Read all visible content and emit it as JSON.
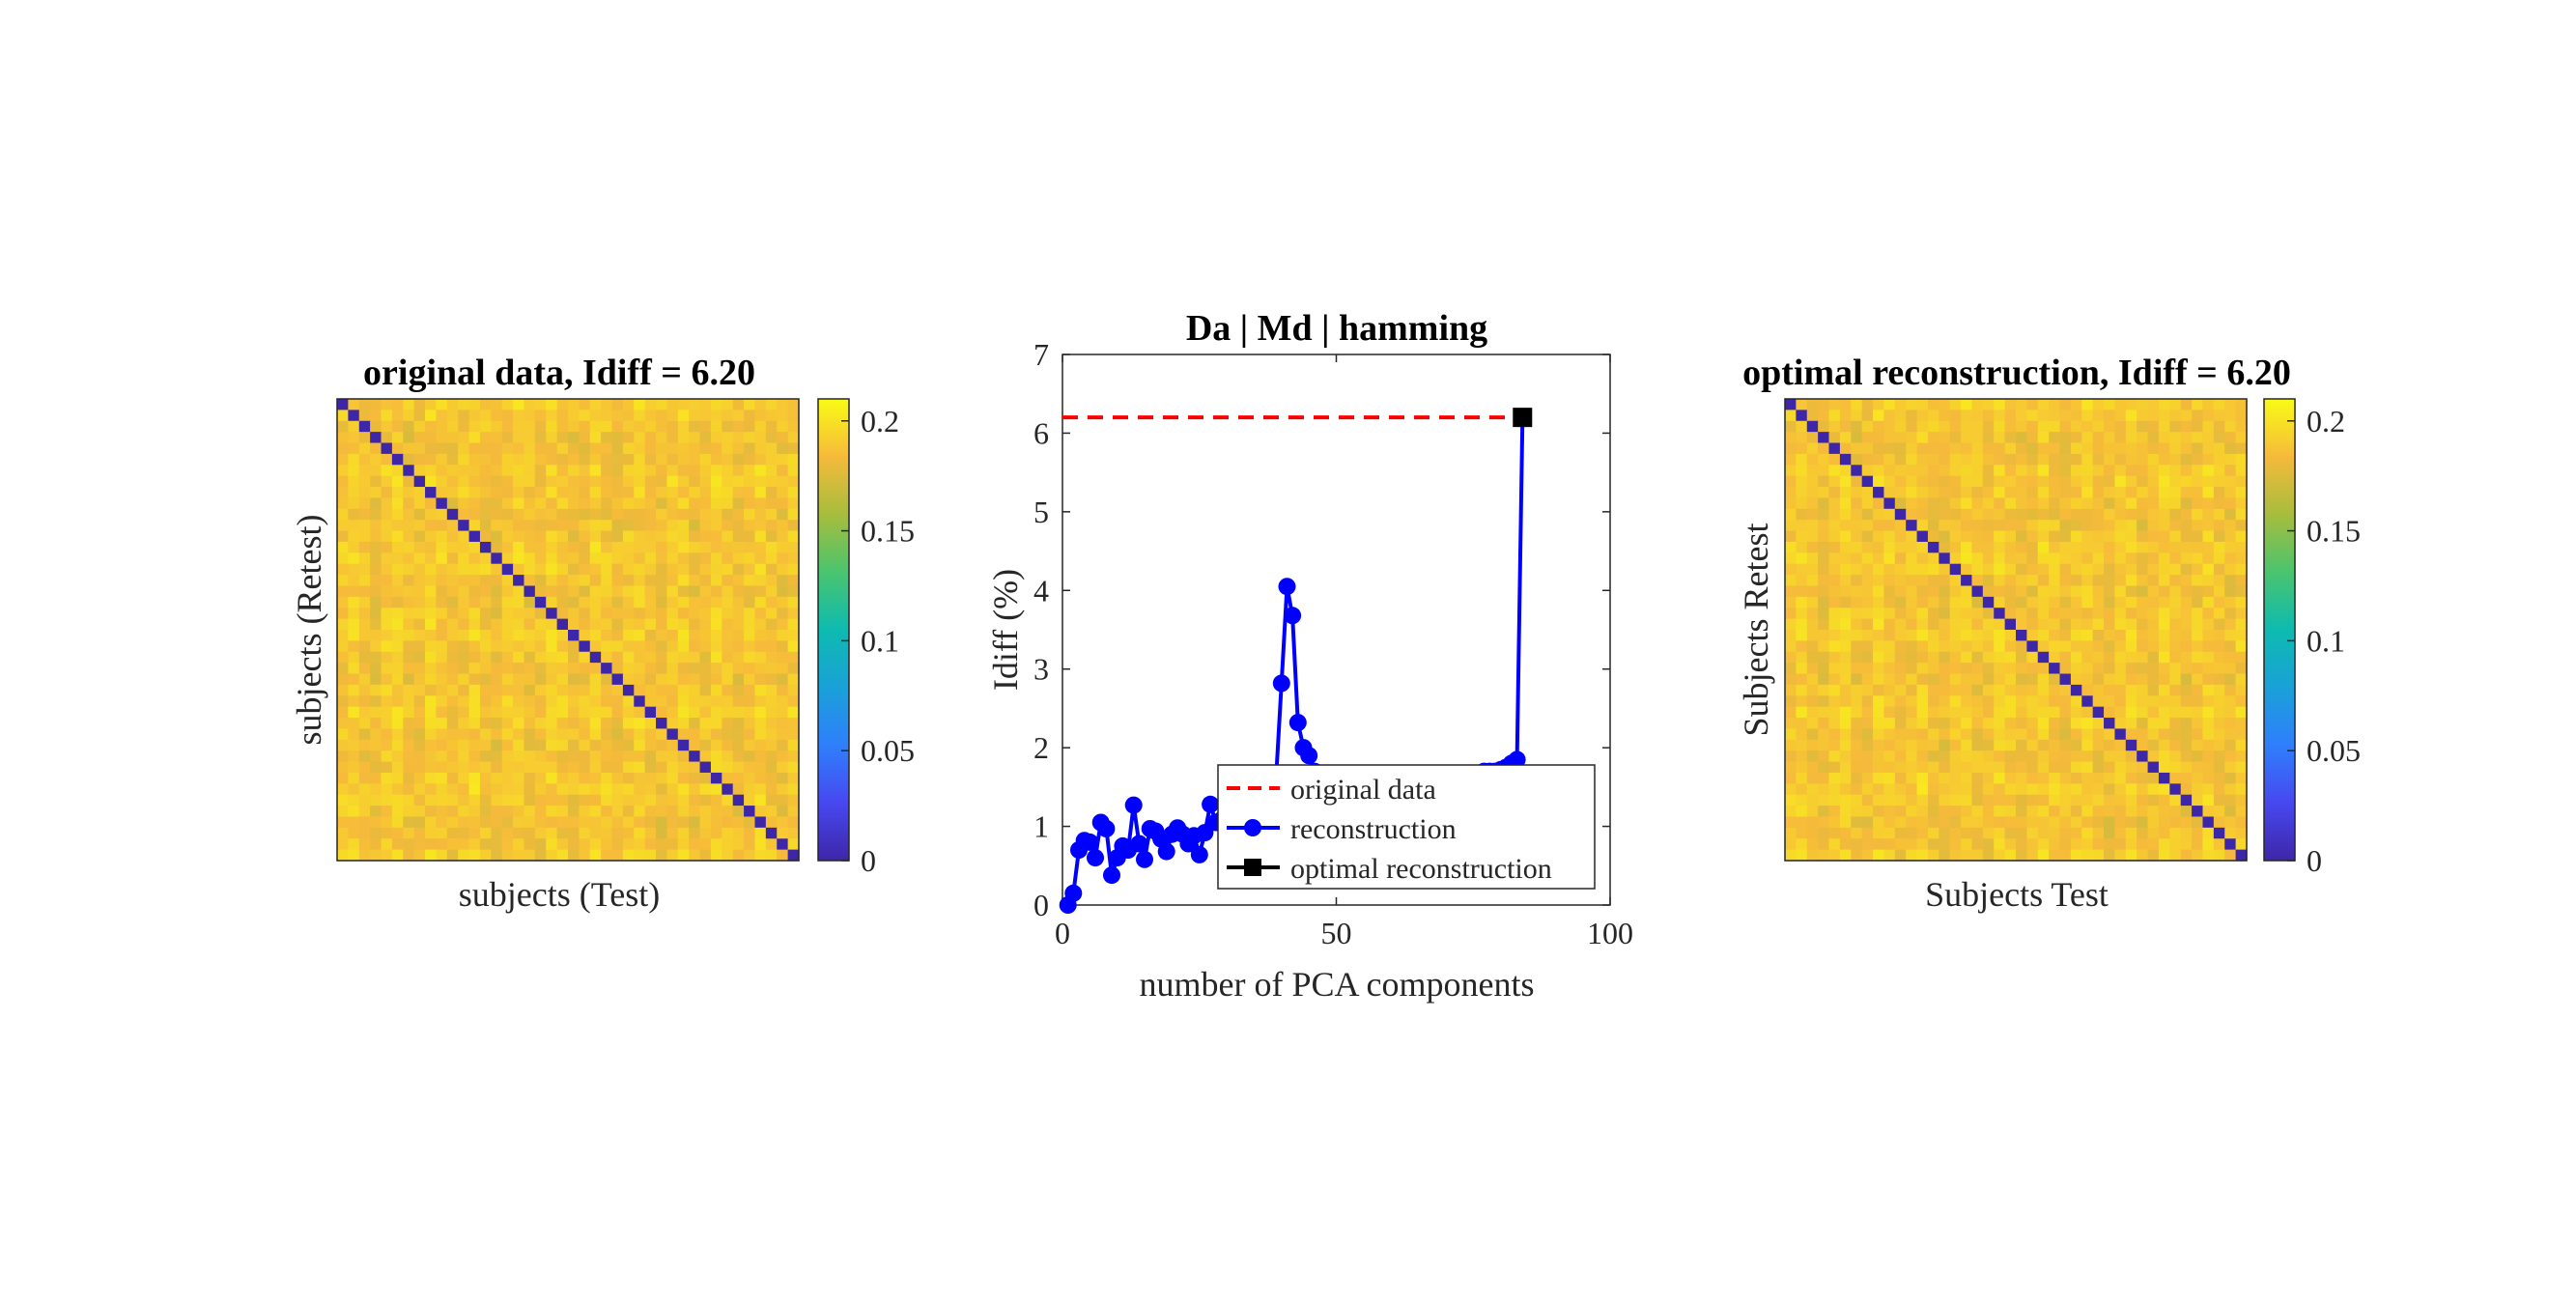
{
  "figure": {
    "left_panel": {
      "title": "original data, Idiff = 6.20",
      "xlabel": "subjects (Test)",
      "ylabel": "subjects (Retest)"
    },
    "middle_panel": {
      "title": "Da | Md | hamming",
      "xlabel": "number of PCA components",
      "ylabel": "Idiff (%)",
      "legend": [
        "original data",
        "reconstruction",
        "optimal reconstruction"
      ]
    },
    "right_panel": {
      "title": "optimal reconstruction, Idiff = 6.20",
      "xlabel": "Subjects Test",
      "ylabel": "Subjects Retest"
    },
    "colorbar_ticks": [
      "0",
      "0.05",
      "0.1",
      "0.15",
      "0.2"
    ],
    "colors": {
      "reconstruction": "#0000ff",
      "original_data": "#ff0000",
      "optimal": "#000000",
      "colormap": "parula"
    }
  },
  "chart_data": [
    {
      "type": "heatmap",
      "title": "original data, Idiff = 6.20",
      "xlabel": "subjects (Test)",
      "ylabel": "subjects (Retest)",
      "n_subjects": 42,
      "diagonal_value": 0.0,
      "off_diagonal_range": [
        0.16,
        0.21
      ],
      "colorbar": {
        "range": [
          0,
          0.21
        ],
        "ticks": [
          0,
          0.05,
          0.1,
          0.15,
          0.2
        ]
      }
    },
    {
      "type": "line",
      "title": "Da | Md | hamming",
      "xlabel": "number of PCA components",
      "ylabel": "Idiff (%)",
      "xlim": [
        0,
        100
      ],
      "ylim": [
        0,
        7
      ],
      "xticks": [
        0,
        50,
        100
      ],
      "yticks": [
        0,
        1,
        2,
        3,
        4,
        5,
        6,
        7
      ],
      "legend_position": "bottom-right",
      "series": [
        {
          "name": "original data",
          "style": "dashed",
          "color": "#ff0000",
          "x": [
            0,
            84
          ],
          "y": [
            6.2,
            6.2
          ]
        },
        {
          "name": "reconstruction",
          "style": "line-with-circles",
          "color": "#0000ff",
          "x": [
            1,
            2,
            3,
            4,
            5,
            6,
            7,
            8,
            9,
            10,
            11,
            12,
            13,
            14,
            15,
            16,
            17,
            18,
            19,
            20,
            21,
            22,
            23,
            24,
            25,
            26,
            27,
            28,
            29,
            30,
            31,
            32,
            33,
            34,
            35,
            36,
            37,
            38,
            39,
            40,
            41,
            42,
            43,
            44,
            45,
            46,
            47,
            48,
            49,
            50,
            51,
            52,
            53,
            54,
            55,
            56,
            57,
            58,
            59,
            60,
            61,
            62,
            63,
            64,
            65,
            66,
            67,
            68,
            69,
            70,
            71,
            72,
            73,
            74,
            75,
            76,
            77,
            78,
            79,
            80,
            81,
            82,
            83,
            84
          ],
          "y": [
            0.0,
            0.15,
            0.7,
            0.82,
            0.8,
            0.6,
            1.05,
            0.97,
            0.38,
            0.6,
            0.75,
            0.7,
            1.27,
            0.78,
            0.58,
            0.97,
            0.94,
            0.84,
            0.68,
            0.9,
            0.98,
            0.9,
            0.78,
            0.88,
            0.64,
            0.92,
            1.28,
            1.05,
            1.08,
            1.1,
            1.12,
            1.15,
            1.2,
            1.22,
            1.25,
            1.3,
            1.35,
            1.45,
            1.6,
            2.82,
            4.05,
            3.68,
            2.32,
            2.0,
            1.9,
            1.7,
            1.6,
            1.55,
            1.5,
            1.5,
            1.5,
            1.45,
            1.45,
            1.45,
            1.45,
            1.45,
            1.5,
            1.5,
            1.5,
            1.5,
            1.5,
            1.5,
            1.5,
            1.55,
            1.55,
            1.55,
            1.55,
            1.6,
            1.6,
            1.6,
            1.6,
            1.6,
            1.65,
            1.65,
            1.65,
            1.65,
            1.7,
            1.7,
            1.7,
            1.72,
            1.75,
            1.8,
            1.85,
            6.2
          ]
        },
        {
          "name": "optimal reconstruction",
          "style": "square-marker",
          "color": "#000000",
          "x": [
            84
          ],
          "y": [
            6.2
          ]
        }
      ]
    },
    {
      "type": "heatmap",
      "title": "optimal reconstruction, Idiff = 6.20",
      "xlabel": "Subjects Test",
      "ylabel": "Subjects Retest",
      "n_subjects": 42,
      "diagonal_value": 0.0,
      "off_diagonal_range": [
        0.16,
        0.21
      ],
      "colorbar": {
        "range": [
          0,
          0.21
        ],
        "ticks": [
          0,
          0.05,
          0.1,
          0.15,
          0.2
        ]
      }
    }
  ]
}
